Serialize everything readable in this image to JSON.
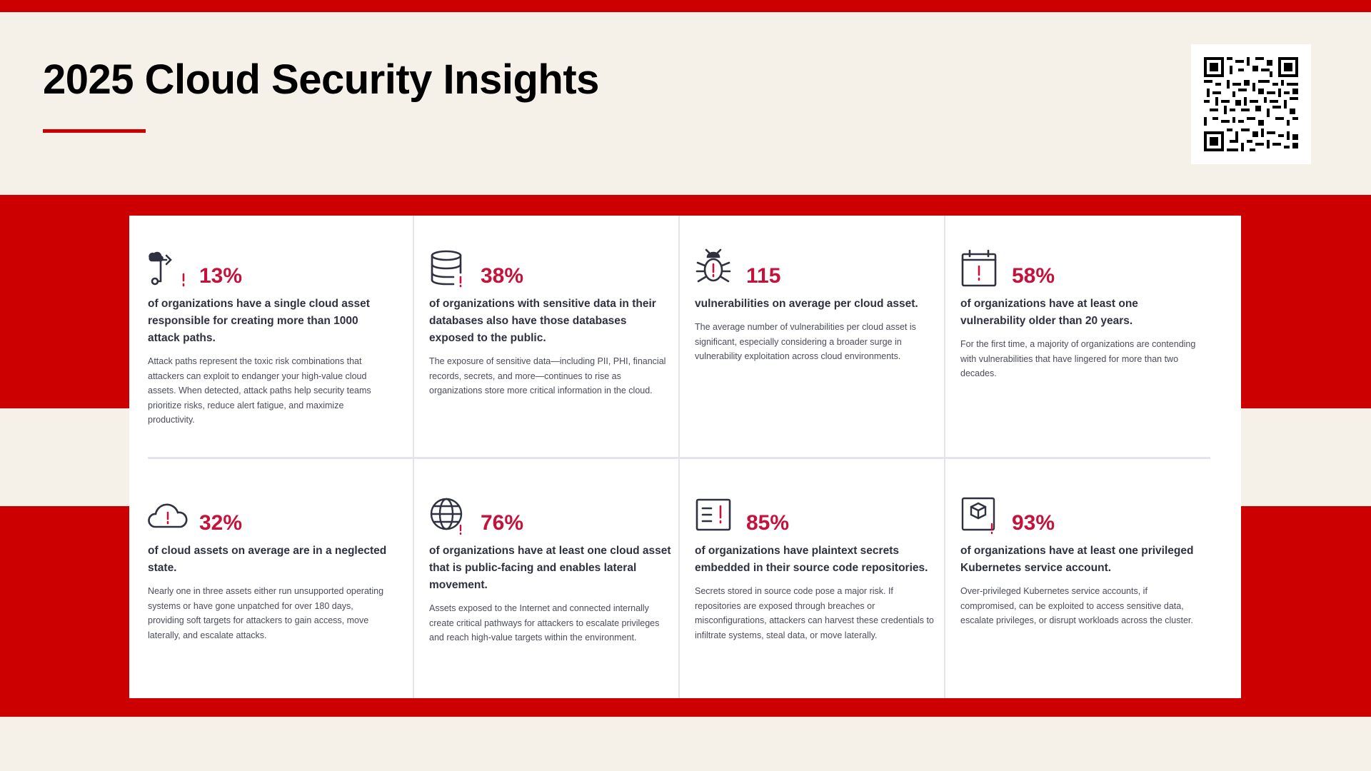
{
  "title": "2025 Cloud Security Insights",
  "colors": {
    "brand_red": "#cc0000",
    "stat_red": "#c4123a",
    "background": "#f5f1e8",
    "panel": "#ffffff",
    "text": "#2f3140"
  },
  "qr_code": {
    "icon": "qr-code-icon"
  },
  "stats": [
    {
      "icon": "attack-path-icon",
      "value": "13%",
      "lead": "of organizations have a single cloud asset responsible for creating more than 1000 attack paths.",
      "description": "Attack paths represent the toxic risk combinations that attackers can exploit to endanger your high-value cloud assets. When detected, attack paths help security teams prioritize risks, reduce alert fatigue, and maximize productivity."
    },
    {
      "icon": "database-alert-icon",
      "value": "38%",
      "lead": "of organizations with sensitive data in their databases also have those databases exposed to the public.",
      "description": "The exposure of sensitive data—including PII, PHI, financial records, secrets, and more—continues to rise as organizations store more critical information in the cloud."
    },
    {
      "icon": "bug-alert-icon",
      "value": "115",
      "lead": "vulnerabilities on average per cloud asset.",
      "description": "The average number of vulnerabilities per cloud asset is significant, especially considering a broader surge in vulnerability exploitation across cloud environments."
    },
    {
      "icon": "calendar-alert-icon",
      "value": "58%",
      "lead": "of organizations have at least one vulnerability older than 20 years.",
      "description": "For the first time, a majority of organizations are contending with vulnerabilities that have lingered for more than two decades."
    },
    {
      "icon": "cloud-alert-icon",
      "value": "32%",
      "lead": "of cloud assets on average are in a neglected state.",
      "description": "Nearly one in three assets either run unsupported operating systems or have gone unpatched for over 180 days, providing soft targets for attackers to gain access, move laterally, and escalate attacks."
    },
    {
      "icon": "globe-alert-icon",
      "value": "76%",
      "lead": "of organizations have at least one cloud asset that is public-facing and enables lateral movement.",
      "description": "Assets exposed to the Internet and connected internally create critical pathways for attackers to escalate privileges and reach high-value targets within the environment."
    },
    {
      "icon": "code-secret-alert-icon",
      "value": "85%",
      "lead": "of organizations have plaintext secrets embedded in their source code repositories.",
      "description": "Secrets stored in source code pose a major risk. If repositories are exposed through breaches or misconfigurations, attackers can harvest these credentials to infiltrate systems, steal data, or move laterally."
    },
    {
      "icon": "kubernetes-account-alert-icon",
      "value": "93%",
      "lead": "of organizations have at least one privileged Kubernetes service account.",
      "description": "Over-privileged Kubernetes service accounts, if compromised, can be exploited to access sensitive data, escalate privileges, or disrupt workloads across the cluster."
    }
  ]
}
